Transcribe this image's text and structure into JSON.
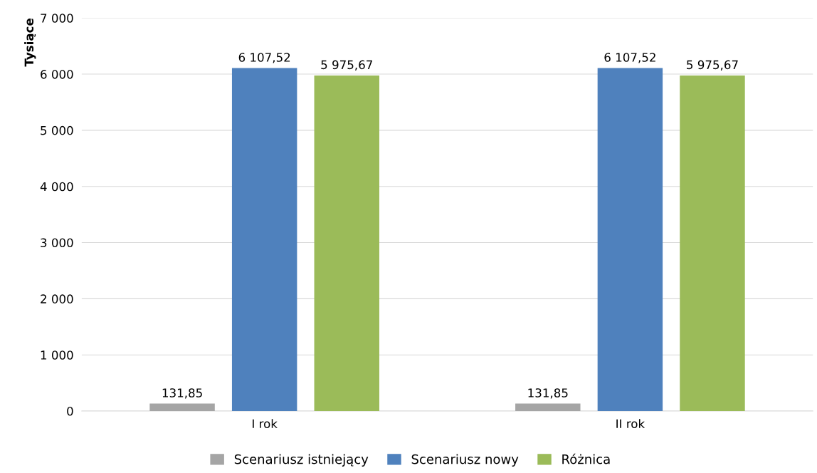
{
  "chart_data": {
    "type": "bar",
    "ylabel": "Tysiące",
    "categories": [
      "I rok",
      "II rok"
    ],
    "series": [
      {
        "name": "Scenariusz istniejący",
        "color": "#a5a5a5",
        "values": [
          131.85,
          131.85
        ],
        "value_labels": [
          "131,85",
          "131,85"
        ]
      },
      {
        "name": "Scenariusz nowy",
        "color": "#4f81bd",
        "values": [
          6107.52,
          6107.52
        ],
        "value_labels": [
          "6 107,52",
          "6 107,52"
        ]
      },
      {
        "name": "Różnica",
        "color": "#9bbb59",
        "values": [
          5975.67,
          5975.67
        ],
        "value_labels": [
          "5 975,67",
          "5 975,67"
        ]
      }
    ],
    "ylim": [
      0,
      7000
    ],
    "yticks": [
      0,
      {
        "value": 1000,
        "label": "1 000"
      },
      {
        "value": 2000,
        "label": "2 000"
      },
      {
        "value": 3000,
        "label": "3 000"
      },
      {
        "value": 4000,
        "label": "4 000"
      },
      {
        "value": 5000,
        "label": "5 000"
      },
      {
        "value": 6000,
        "label": "6 000"
      },
      {
        "value": 7000,
        "label": "7 000"
      }
    ],
    "grid": "y",
    "legend": "bottom"
  }
}
